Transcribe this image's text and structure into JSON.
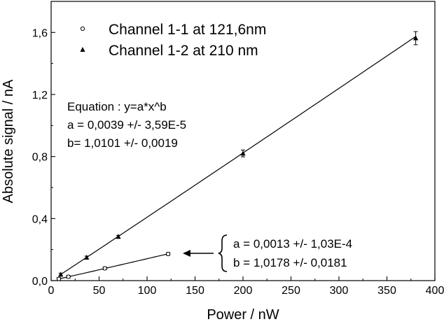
{
  "chart_data": {
    "type": "scatter",
    "title": "",
    "xlabel": "Power / nW",
    "ylabel": "Absolute signal / nA",
    "xlim": [
      0,
      400
    ],
    "ylim": [
      0,
      1.8
    ],
    "xticks": [
      "0",
      "50",
      "100",
      "150",
      "200",
      "250",
      "300",
      "350",
      "400"
    ],
    "yticks": [
      "0,0",
      "0,4",
      "0,8",
      "1,2",
      "1,6"
    ],
    "grid": false,
    "legend_position": "top-left",
    "series": [
      {
        "name": "Channel 1-1 at 121,6nm",
        "marker": "open-circle",
        "x": [
          8,
          18,
          56,
          122
        ],
        "y": [
          0.011,
          0.025,
          0.079,
          0.172
        ],
        "fit_curve": {
          "a": 0.0013,
          "b": 1.0178
        }
      },
      {
        "name": "Channel 1-2 at 210 nm",
        "marker": "filled-triangle",
        "x": [
          10,
          37,
          70,
          200,
          380
        ],
        "y": [
          0.039,
          0.149,
          0.283,
          0.82,
          1.563
        ],
        "fit_curve": {
          "a": 0.0039,
          "b": 1.0101
        }
      }
    ],
    "annotations": {
      "equation_lines": [
        "Equation :  y=a*x^b",
        "a = 0,0039 +/- 3,59E-5",
        "b= 1,0101  +/- 0,0019"
      ],
      "fit2_lines": [
        "a = 0,0013   +/- 1,03E-4",
        "b = 1,0178  +/- 0,0181"
      ]
    }
  }
}
